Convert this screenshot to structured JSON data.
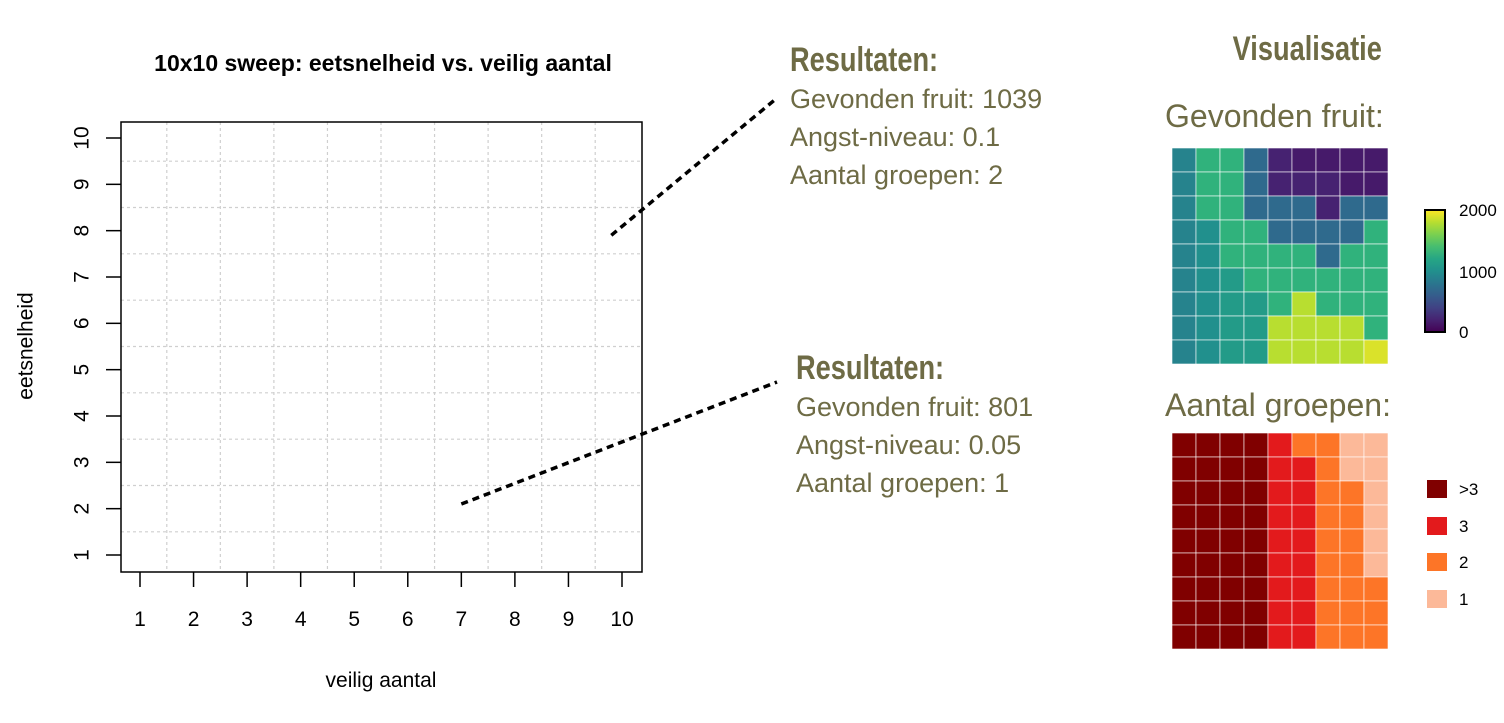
{
  "chart_data": [
    {
      "type": "scatter",
      "title": "10x10 sweep: eetsnelheid vs. veilig aantal",
      "xlabel": "veilig aantal",
      "ylabel": "eetsnelheid",
      "xlim": [
        1,
        10
      ],
      "ylim": [
        1,
        10
      ],
      "xticks": [
        "1",
        "2",
        "3",
        "4",
        "5",
        "6",
        "7",
        "8",
        "9",
        "10"
      ],
      "yticks": [
        "1",
        "2",
        "3",
        "4",
        "5",
        "6",
        "7",
        "8",
        "9",
        "10"
      ],
      "grid": true,
      "annotations": [
        {
          "heading": "Resultaten:",
          "lines": [
            "Gevonden fruit: 1039",
            "Angst-niveau: 0.1",
            "Aantal groepen: 2"
          ],
          "point": [
            9.8,
            7.9
          ]
        },
        {
          "heading": "Resultaten:",
          "lines": [
            "Gevonden fruit: 801",
            "Angst-niveau: 0.05",
            "Aantal groepen: 1"
          ],
          "point": [
            7,
            2.1
          ]
        }
      ]
    },
    {
      "type": "heatmap",
      "title": "Gevonden fruit:",
      "legend_ticks": [
        "2000",
        "1000",
        "0"
      ],
      "scale": "viridis",
      "range": [
        0,
        2000
      ],
      "values": [
        [
          900,
          1300,
          1300,
          700,
          200,
          150,
          150,
          150,
          150
        ],
        [
          900,
          1300,
          1300,
          700,
          200,
          200,
          200,
          150,
          150
        ],
        [
          900,
          1300,
          1300,
          700,
          700,
          700,
          200,
          700,
          700
        ],
        [
          900,
          1000,
          1300,
          1300,
          700,
          700,
          700,
          700,
          1300
        ],
        [
          900,
          1000,
          1300,
          1300,
          1300,
          1300,
          700,
          1300,
          1300
        ],
        [
          900,
          1000,
          1100,
          1300,
          1300,
          1300,
          1300,
          1300,
          1300
        ],
        [
          900,
          1000,
          1100,
          1100,
          1300,
          1800,
          1300,
          1300,
          1300
        ],
        [
          900,
          1000,
          1100,
          1100,
          1800,
          1800,
          1800,
          1800,
          1300
        ],
        [
          900,
          1000,
          1100,
          1100,
          1800,
          1800,
          1800,
          1800,
          1900
        ]
      ]
    },
    {
      "type": "heatmap",
      "title": "Aantal groepen:",
      "legend": [
        {
          "label": ">3",
          "color": "#800000"
        },
        {
          "label": "3",
          "color": "#e31a1c"
        },
        {
          "label": "2",
          "color": "#fd7527"
        },
        {
          "label": "1",
          "color": "#fcb999"
        }
      ],
      "values": [
        [
          4,
          4,
          4,
          4,
          3,
          2,
          2,
          1,
          1
        ],
        [
          4,
          4,
          4,
          4,
          3,
          3,
          2,
          1,
          1
        ],
        [
          4,
          4,
          4,
          4,
          3,
          3,
          2,
          2,
          1
        ],
        [
          4,
          4,
          4,
          4,
          3,
          3,
          2,
          2,
          1
        ],
        [
          4,
          4,
          4,
          4,
          3,
          3,
          2,
          2,
          1
        ],
        [
          4,
          4,
          4,
          4,
          3,
          3,
          2,
          2,
          1
        ],
        [
          4,
          4,
          4,
          4,
          3,
          3,
          2,
          2,
          2
        ],
        [
          4,
          4,
          4,
          4,
          3,
          3,
          2,
          2,
          2
        ],
        [
          4,
          4,
          4,
          4,
          3,
          3,
          2,
          2,
          2
        ]
      ]
    }
  ],
  "visualisatie_title": "Visualisatie"
}
